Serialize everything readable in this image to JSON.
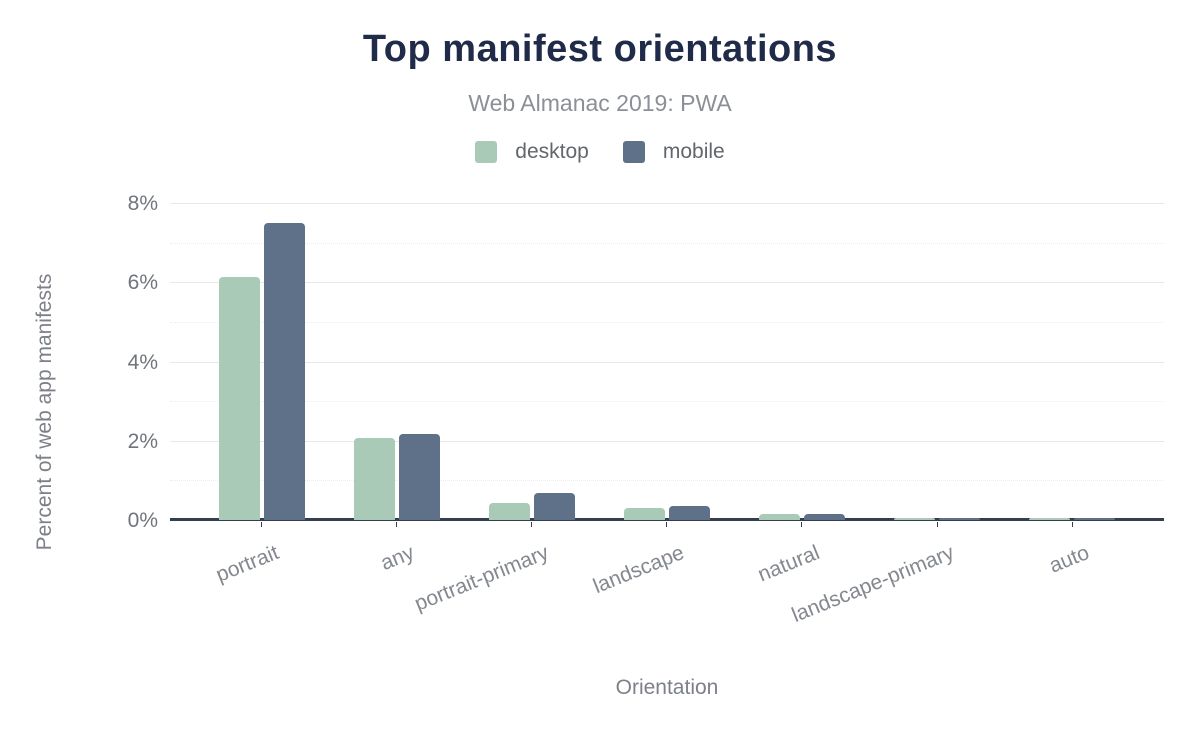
{
  "header": {
    "title": "Top manifest orientations",
    "subtitle": "Web Almanac 2019: PWA"
  },
  "chart_data": {
    "type": "bar",
    "title": "Top manifest orientations",
    "subtitle": "Web Almanac 2019: PWA",
    "categories": [
      "portrait",
      "any",
      "portrait-primary",
      "landscape",
      "natural",
      "landscape-primary",
      "auto"
    ],
    "series": [
      {
        "name": "desktop",
        "color": "#a8cab7",
        "values": [
          6.13,
          2.08,
          0.43,
          0.31,
          0.16,
          0.05,
          0.04
        ]
      },
      {
        "name": "mobile",
        "color": "#5f7089",
        "values": [
          7.49,
          2.18,
          0.68,
          0.35,
          0.15,
          0.06,
          0.04
        ]
      }
    ],
    "xlabel": "Orientation",
    "ylabel": "Percent of web app manifests",
    "ylim": [
      0,
      8
    ],
    "yticks": [
      0,
      2,
      4,
      6,
      8
    ],
    "ytick_labels": [
      "0%",
      "2%",
      "4%",
      "6%",
      "8%"
    ],
    "minor_yticks": [
      1,
      3,
      5,
      7
    ],
    "grid": "horizontal: major solid, minor dotted",
    "legend_position": "top-center"
  },
  "colors": {
    "title": "#1f2b48",
    "subtitle": "#8b9096",
    "axis_line": "#333e4f",
    "gridline_major": "#e8e8e8",
    "gridline_minor": "#ececec",
    "y_tick_label": "#70757d",
    "category_label": "#84888f",
    "axis_title": "#7d8187",
    "desktop_bar": "#a8cab7",
    "mobile_bar": "#5f7089"
  }
}
